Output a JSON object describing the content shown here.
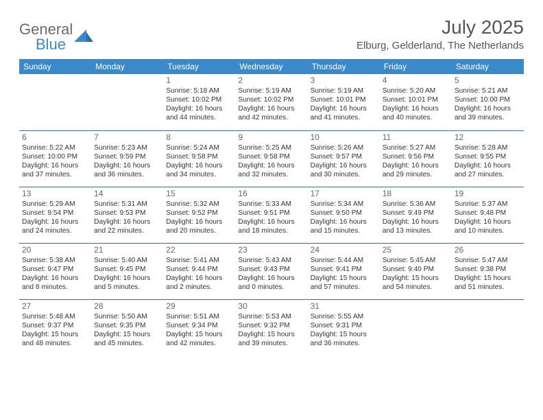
{
  "logo": {
    "text_gray": "General",
    "text_blue": "Blue",
    "triangle_color": "#3a8ac9"
  },
  "header": {
    "month_title": "July 2025",
    "location": "Elburg, Gelderland, The Netherlands"
  },
  "colors": {
    "header_bg": "#3a8ac9",
    "header_text": "#ffffff",
    "row_border": "#3a6a8c",
    "text": "#333333",
    "daynum": "#666666",
    "title_text": "#555555",
    "logo_gray": "#6b6b6b"
  },
  "days_of_week": [
    "Sunday",
    "Monday",
    "Tuesday",
    "Wednesday",
    "Thursday",
    "Friday",
    "Saturday"
  ],
  "weeks": [
    [
      null,
      null,
      {
        "n": "1",
        "sunrise": "5:18 AM",
        "sunset": "10:02 PM",
        "daylight": "16 hours and 44 minutes."
      },
      {
        "n": "2",
        "sunrise": "5:19 AM",
        "sunset": "10:02 PM",
        "daylight": "16 hours and 42 minutes."
      },
      {
        "n": "3",
        "sunrise": "5:19 AM",
        "sunset": "10:01 PM",
        "daylight": "16 hours and 41 minutes."
      },
      {
        "n": "4",
        "sunrise": "5:20 AM",
        "sunset": "10:01 PM",
        "daylight": "16 hours and 40 minutes."
      },
      {
        "n": "5",
        "sunrise": "5:21 AM",
        "sunset": "10:00 PM",
        "daylight": "16 hours and 39 minutes."
      }
    ],
    [
      {
        "n": "6",
        "sunrise": "5:22 AM",
        "sunset": "10:00 PM",
        "daylight": "16 hours and 37 minutes."
      },
      {
        "n": "7",
        "sunrise": "5:23 AM",
        "sunset": "9:59 PM",
        "daylight": "16 hours and 36 minutes."
      },
      {
        "n": "8",
        "sunrise": "5:24 AM",
        "sunset": "9:58 PM",
        "daylight": "16 hours and 34 minutes."
      },
      {
        "n": "9",
        "sunrise": "5:25 AM",
        "sunset": "9:58 PM",
        "daylight": "16 hours and 32 minutes."
      },
      {
        "n": "10",
        "sunrise": "5:26 AM",
        "sunset": "9:57 PM",
        "daylight": "16 hours and 30 minutes."
      },
      {
        "n": "11",
        "sunrise": "5:27 AM",
        "sunset": "9:56 PM",
        "daylight": "16 hours and 29 minutes."
      },
      {
        "n": "12",
        "sunrise": "5:28 AM",
        "sunset": "9:55 PM",
        "daylight": "16 hours and 27 minutes."
      }
    ],
    [
      {
        "n": "13",
        "sunrise": "5:29 AM",
        "sunset": "9:54 PM",
        "daylight": "16 hours and 24 minutes."
      },
      {
        "n": "14",
        "sunrise": "5:31 AM",
        "sunset": "9:53 PM",
        "daylight": "16 hours and 22 minutes."
      },
      {
        "n": "15",
        "sunrise": "5:32 AM",
        "sunset": "9:52 PM",
        "daylight": "16 hours and 20 minutes."
      },
      {
        "n": "16",
        "sunrise": "5:33 AM",
        "sunset": "9:51 PM",
        "daylight": "16 hours and 18 minutes."
      },
      {
        "n": "17",
        "sunrise": "5:34 AM",
        "sunset": "9:50 PM",
        "daylight": "16 hours and 15 minutes."
      },
      {
        "n": "18",
        "sunrise": "5:36 AM",
        "sunset": "9:49 PM",
        "daylight": "16 hours and 13 minutes."
      },
      {
        "n": "19",
        "sunrise": "5:37 AM",
        "sunset": "9:48 PM",
        "daylight": "16 hours and 10 minutes."
      }
    ],
    [
      {
        "n": "20",
        "sunrise": "5:38 AM",
        "sunset": "9:47 PM",
        "daylight": "16 hours and 8 minutes."
      },
      {
        "n": "21",
        "sunrise": "5:40 AM",
        "sunset": "9:45 PM",
        "daylight": "16 hours and 5 minutes."
      },
      {
        "n": "22",
        "sunrise": "5:41 AM",
        "sunset": "9:44 PM",
        "daylight": "16 hours and 2 minutes."
      },
      {
        "n": "23",
        "sunrise": "5:43 AM",
        "sunset": "9:43 PM",
        "daylight": "16 hours and 0 minutes."
      },
      {
        "n": "24",
        "sunrise": "5:44 AM",
        "sunset": "9:41 PM",
        "daylight": "15 hours and 57 minutes."
      },
      {
        "n": "25",
        "sunrise": "5:45 AM",
        "sunset": "9:40 PM",
        "daylight": "15 hours and 54 minutes."
      },
      {
        "n": "26",
        "sunrise": "5:47 AM",
        "sunset": "9:38 PM",
        "daylight": "15 hours and 51 minutes."
      }
    ],
    [
      {
        "n": "27",
        "sunrise": "5:48 AM",
        "sunset": "9:37 PM",
        "daylight": "15 hours and 48 minutes."
      },
      {
        "n": "28",
        "sunrise": "5:50 AM",
        "sunset": "9:35 PM",
        "daylight": "15 hours and 45 minutes."
      },
      {
        "n": "29",
        "sunrise": "5:51 AM",
        "sunset": "9:34 PM",
        "daylight": "15 hours and 42 minutes."
      },
      {
        "n": "30",
        "sunrise": "5:53 AM",
        "sunset": "9:32 PM",
        "daylight": "15 hours and 39 minutes."
      },
      {
        "n": "31",
        "sunrise": "5:55 AM",
        "sunset": "9:31 PM",
        "daylight": "15 hours and 36 minutes."
      },
      null,
      null
    ]
  ],
  "labels": {
    "sunrise": "Sunrise:",
    "sunset": "Sunset:",
    "daylight": "Daylight:"
  }
}
